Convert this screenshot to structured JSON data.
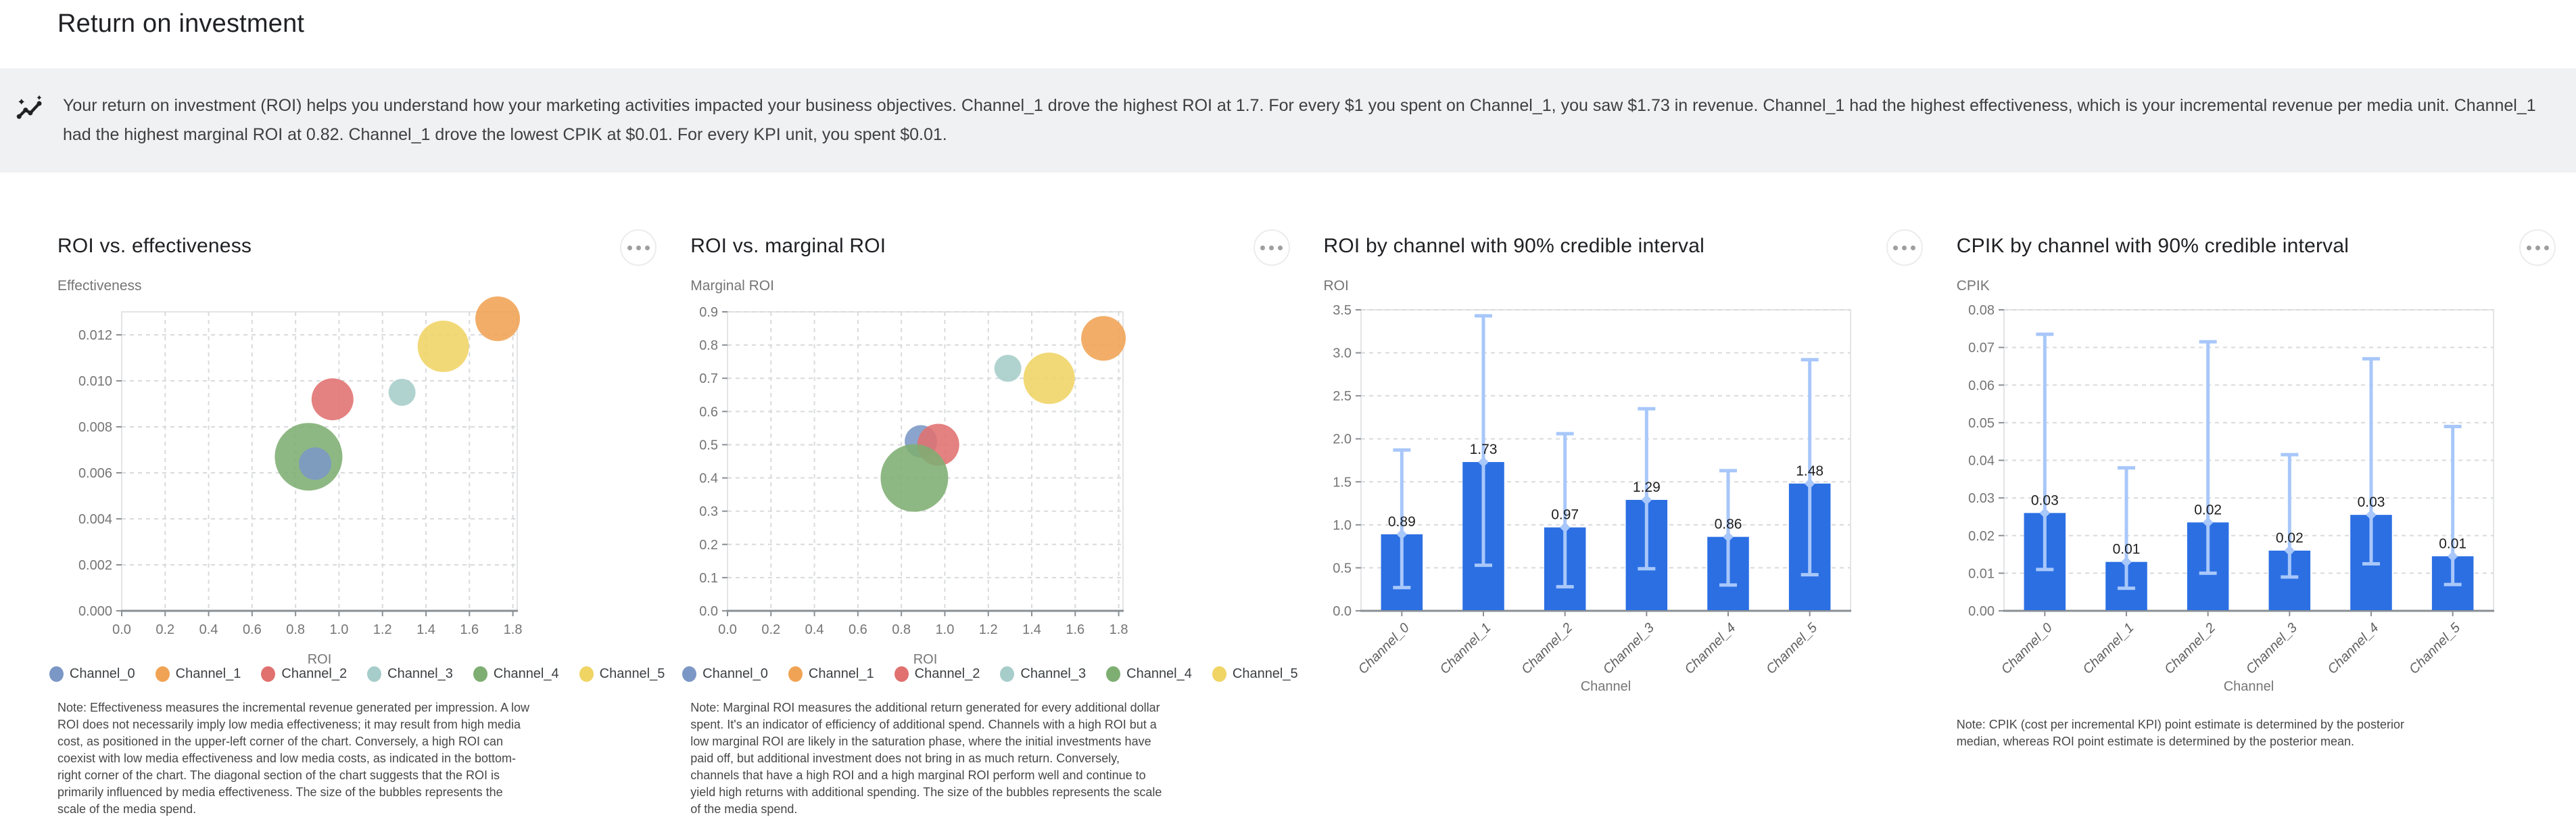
{
  "page": {
    "title": "Return on investment"
  },
  "insight": {
    "icon": "insights-sparkline-icon",
    "text": "Your return on investment (ROI) helps you understand how your marketing activities impacted your business objectives. Channel_1 drove the highest ROI at 1.7. For every $1 you spent on Channel_1, you saw $1.73 in revenue. Channel_1 had the highest effectiveness, which is your incremental revenue per media unit. Channel_1 had the highest marginal ROI at 0.82. Channel_1 drove the lowest CPIK at $0.01. For every KPI unit, you spent $0.01."
  },
  "channels": [
    {
      "name": "Channel_0",
      "color": "#7b97c6"
    },
    {
      "name": "Channel_1",
      "color": "#f0a354"
    },
    {
      "name": "Channel_2",
      "color": "#e0716f"
    },
    {
      "name": "Channel_3",
      "color": "#a6cdca"
    },
    {
      "name": "Channel_4",
      "color": "#7eae72"
    },
    {
      "name": "Channel_5",
      "color": "#f0d464"
    }
  ],
  "theme": {
    "bar_color": "#2b6fe3",
    "interval_color": "#a8c7fa",
    "insight_bg": "#f0f1f2",
    "grid_color": "#d8dadc",
    "frame_color": "#e3e4e6",
    "axis_color": "#8a8f94",
    "tick_text": "#757575",
    "category_text": "#616161",
    "value_label_text": "#1f1f1f",
    "title_text": "#202124",
    "note_text": "#474747"
  },
  "chart_data": [
    {
      "type": "scatter",
      "title": "ROI vs. effectiveness",
      "unit": "Effectiveness",
      "xlabel": "ROI",
      "xlim": [
        0,
        1.82
      ],
      "x_ticks": [
        0,
        0.2,
        0.4,
        0.6,
        0.8,
        1.0,
        1.2,
        1.4,
        1.6,
        1.8
      ],
      "x_tick_labels": [
        "0.0",
        "0.2",
        "0.4",
        "0.6",
        "0.8",
        "1.0",
        "1.2",
        "1.4",
        "1.6",
        "1.8"
      ],
      "ylim": [
        0,
        0.013
      ],
      "y_ticks": [
        0,
        0.002,
        0.004,
        0.006,
        0.008,
        0.01,
        0.012
      ],
      "y_tick_labels": [
        "0.000",
        "0.002",
        "0.004",
        "0.006",
        "0.008",
        "0.010",
        "0.012"
      ],
      "grid": "both-dashed",
      "legend_position": "bottom",
      "series": [
        {
          "name": "Channel_0",
          "x": 0.89,
          "y": 0.0064,
          "size": 24
        },
        {
          "name": "Channel_1",
          "x": 1.73,
          "y": 0.0127,
          "size": 33
        },
        {
          "name": "Channel_2",
          "x": 0.97,
          "y": 0.0092,
          "size": 31
        },
        {
          "name": "Channel_3",
          "x": 1.29,
          "y": 0.0095,
          "size": 20
        },
        {
          "name": "Channel_4",
          "x": 0.86,
          "y": 0.0067,
          "size": 50
        },
        {
          "name": "Channel_5",
          "x": 1.48,
          "y": 0.0115,
          "size": 38
        }
      ],
      "z_order": [
        4,
        0,
        2,
        3,
        5,
        1
      ],
      "note": "Note: Effectiveness measures the incremental revenue generated per impression. A low ROI does not necessarily imply low media effectiveness; it may result from high media cost, as positioned in the upper-left corner of the chart. Conversely, a high ROI can coexist with low media effectiveness and low media costs, as indicated in the bottom-right corner of the chart. The diagonal section of the chart suggests that the ROI is primarily influenced by media effectiveness. The size of the bubbles represents the scale of the media spend."
    },
    {
      "type": "scatter",
      "title": "ROI vs. marginal ROI",
      "unit": "Marginal ROI",
      "xlabel": "ROI",
      "xlim": [
        0,
        1.82
      ],
      "x_ticks": [
        0,
        0.2,
        0.4,
        0.6,
        0.8,
        1.0,
        1.2,
        1.4,
        1.6,
        1.8
      ],
      "x_tick_labels": [
        "0.0",
        "0.2",
        "0.4",
        "0.6",
        "0.8",
        "1.0",
        "1.2",
        "1.4",
        "1.6",
        "1.8"
      ],
      "ylim": [
        0,
        0.9
      ],
      "y_ticks": [
        0,
        0.1,
        0.2,
        0.3,
        0.4,
        0.5,
        0.6,
        0.7,
        0.8,
        0.9
      ],
      "y_tick_labels": [
        "0.0",
        "0.1",
        "0.2",
        "0.3",
        "0.4",
        "0.5",
        "0.6",
        "0.7",
        "0.8",
        "0.9"
      ],
      "grid": "both-dashed",
      "legend_position": "bottom",
      "series": [
        {
          "name": "Channel_0",
          "x": 0.89,
          "y": 0.51,
          "size": 24
        },
        {
          "name": "Channel_1",
          "x": 1.73,
          "y": 0.82,
          "size": 33
        },
        {
          "name": "Channel_2",
          "x": 0.97,
          "y": 0.5,
          "size": 31
        },
        {
          "name": "Channel_3",
          "x": 1.29,
          "y": 0.73,
          "size": 20
        },
        {
          "name": "Channel_4",
          "x": 0.86,
          "y": 0.4,
          "size": 50
        },
        {
          "name": "Channel_5",
          "x": 1.48,
          "y": 0.7,
          "size": 38
        }
      ],
      "z_order": [
        0,
        2,
        4,
        3,
        5,
        1
      ],
      "note": "Note: Marginal ROI measures the additional return generated for every additional dollar spent. It's an indicator of efficiency of additional spend. Channels with a high ROI but a low marginal ROI are likely in the saturation phase, where the initial investments have paid off, but additional investment does not bring in as much return. Conversely, channels that have a high ROI and a high marginal ROI perform well and continue to yield high returns with additional spending. The size of the bubbles represents the scale of the media spend."
    },
    {
      "type": "bar",
      "title": "ROI by channel with 90% credible interval",
      "unit": "ROI",
      "xlabel": "Channel",
      "categories": [
        "Channel_0",
        "Channel_1",
        "Channel_2",
        "Channel_3",
        "Channel_4",
        "Channel_5"
      ],
      "values": [
        0.89,
        1.73,
        0.97,
        1.29,
        0.86,
        1.48
      ],
      "value_labels": [
        "0.89",
        "1.73",
        "0.97",
        "1.29",
        "0.86",
        "1.48"
      ],
      "ci_low": [
        0.27,
        0.53,
        0.28,
        0.49,
        0.3,
        0.42
      ],
      "ci_high": [
        1.87,
        3.43,
        2.06,
        2.35,
        1.63,
        2.92
      ],
      "ylim": [
        0,
        3.5
      ],
      "y_ticks": [
        0,
        0.5,
        1.0,
        1.5,
        2.0,
        2.5,
        3.0,
        3.5
      ],
      "y_tick_labels": [
        "0.0",
        "0.5",
        "1.0",
        "1.5",
        "2.0",
        "2.5",
        "3.0",
        "3.5"
      ],
      "grid": "horizontal-dashed",
      "note": null
    },
    {
      "type": "bar",
      "title": "CPIK by channel with 90% credible interval",
      "unit": "CPIK",
      "xlabel": "Channel",
      "categories": [
        "Channel_0",
        "Channel_1",
        "Channel_2",
        "Channel_3",
        "Channel_4",
        "Channel_5"
      ],
      "values": [
        0.026,
        0.013,
        0.0235,
        0.016,
        0.0255,
        0.0145
      ],
      "value_labels": [
        "0.03",
        "0.01",
        "0.02",
        "0.02",
        "0.03",
        "0.01"
      ],
      "ci_low": [
        0.011,
        0.006,
        0.01,
        0.009,
        0.0125,
        0.007
      ],
      "ci_high": [
        0.0735,
        0.038,
        0.0715,
        0.0415,
        0.067,
        0.049
      ],
      "ylim": [
        0,
        0.08
      ],
      "y_ticks": [
        0,
        0.01,
        0.02,
        0.03,
        0.04,
        0.05,
        0.06,
        0.07,
        0.08
      ],
      "y_tick_labels": [
        "0.00",
        "0.01",
        "0.02",
        "0.03",
        "0.04",
        "0.05",
        "0.06",
        "0.07",
        "0.08"
      ],
      "grid": "horizontal-dashed",
      "note": "Note: CPIK (cost per incremental KPI) point estimate is determined by the posterior median, whereas ROI point estimate is determined by the posterior mean."
    }
  ]
}
